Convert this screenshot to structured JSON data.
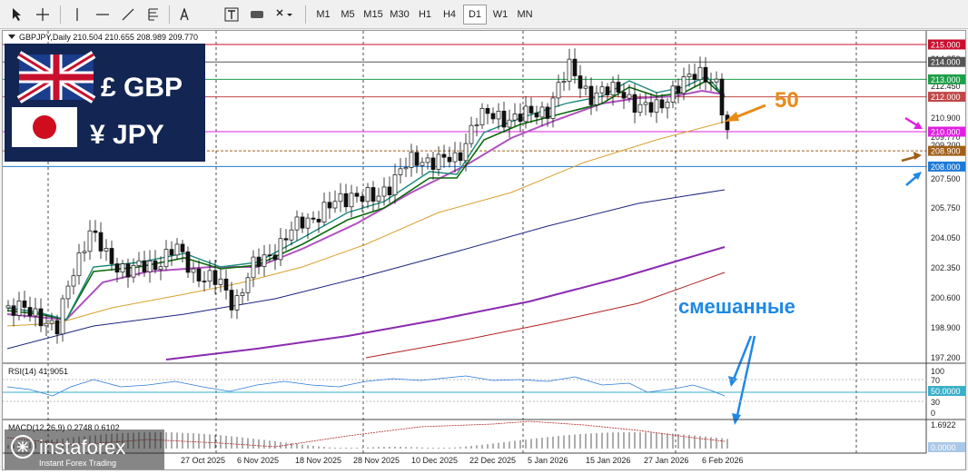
{
  "toolbar": {
    "tools": [
      {
        "name": "cursor-tool-button",
        "icon": "arrow-cursor-icon"
      },
      {
        "name": "crosshair-tool-button",
        "icon": "crosshair-icon"
      },
      {
        "name": "vertical-line-tool-button",
        "icon": "vertical-line-icon"
      },
      {
        "name": "horizontal-line-tool-button",
        "icon": "horizontal-line-icon"
      },
      {
        "name": "trendline-tool-button",
        "icon": "trendline-icon"
      },
      {
        "name": "fibonacci-tool-button",
        "icon": "fibonacci-icon"
      },
      {
        "name": "text-tool-button",
        "label": "A"
      },
      {
        "name": "text-label-tool-button",
        "label": "T"
      },
      {
        "name": "shapes-tool-button",
        "icon": "rectangle-icon"
      },
      {
        "name": "arrows-tool-button",
        "icon": "arrows-dropdown-icon"
      }
    ],
    "timeframes": [
      "M1",
      "M5",
      "M15",
      "M30",
      "H1",
      "H4",
      "D1",
      "W1",
      "MN"
    ],
    "active_timeframe": "D1"
  },
  "chart": {
    "title": "GBPJPY,Daily  210.504 210.655 208.989 209.770",
    "logo": {
      "gbp_label": "£ GBP",
      "jpy_label": "¥ JPY"
    },
    "annotation_50": "50",
    "annotation_mixed": "смешанные",
    "price_axis": [
      "214.350",
      "212.450",
      "210.900",
      "209.770",
      "209.200",
      "207.500",
      "205.750",
      "204.050",
      "202.350",
      "200.600",
      "198.900",
      "197.200"
    ],
    "level_labels": [
      {
        "text": "215.000",
        "price": 215.0,
        "bg": "#c8102e",
        "color": "#ffffff"
      },
      {
        "text": "214.000",
        "price": 214.0,
        "bg": "#555555",
        "color": "#ffffff"
      },
      {
        "text": "213.000",
        "price": 213.0,
        "bg": "#1f9e4a",
        "color": "#ffffff"
      },
      {
        "text": "212.000",
        "price": 212.0,
        "bg": "#c04848",
        "color": "#ffffff"
      },
      {
        "text": "210.000",
        "price": 210.0,
        "bg": "#e020e0",
        "color": "#ffffff"
      },
      {
        "text": "208.900",
        "price": 208.9,
        "bg": "#a0601a",
        "color": "#ffffff"
      },
      {
        "text": "208.000",
        "price": 208.0,
        "bg": "#1e7ad8",
        "color": "#ffffff"
      }
    ],
    "date_axis": [
      "27 Oct 2025",
      "6 Nov 2025",
      "18 Nov 2025",
      "28 Nov 2025",
      "10 Dec 2025",
      "22 Dec 2025",
      "5 Jan 2026",
      "15 Jan 2026",
      "27 Jan 2026",
      "6 Feb 2026"
    ],
    "rsi": {
      "label": "RSI(14) 41.9051",
      "levels": [
        "100",
        "70",
        "50.0000",
        "30",
        "0"
      ]
    },
    "macd": {
      "label": "MACD(12,26,9) 0.2748 0.6102",
      "levels": [
        "1.6922",
        "0.0000"
      ]
    },
    "watermark": {
      "brand": "instaforex",
      "tagline": "Instant Forex Trading"
    },
    "colors": {
      "ema_fast": "#1a8a7a",
      "ema_mid": "#0a6a0a",
      "sma_purple": "#b050c0",
      "sma_50": "#d8a030",
      "sma_navy": "#1a237e",
      "sma_violet": "#8a2bb0",
      "sma_red": "#b02020",
      "rsi_line": "#2a7ad8",
      "annotation_orange": "#e88a18",
      "annotation_blue": "#1e88e5"
    }
  }
}
